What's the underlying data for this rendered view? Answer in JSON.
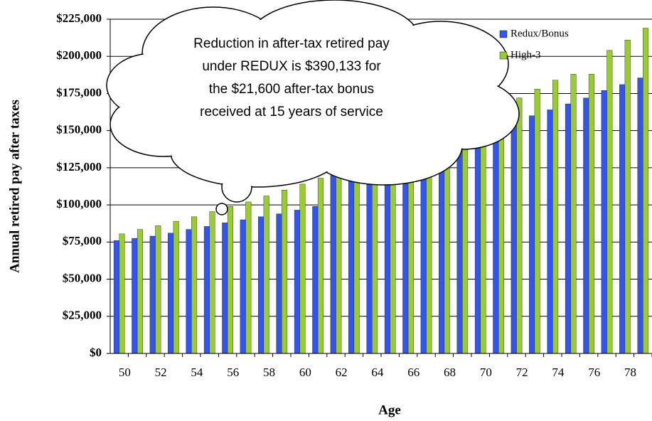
{
  "chart_data": {
    "type": "bar",
    "ylabel": "Annual  retired pay after taxes",
    "xlabel": "Age",
    "annotation": [
      "Reduction in after-tax retired pay",
      "under REDUX is $390,133 for",
      "the $21,600 after-tax bonus",
      "received at 15 years of service"
    ],
    "categories": [
      "50",
      null,
      "52",
      null,
      "54",
      null,
      "56",
      null,
      "58",
      null,
      "60",
      null,
      "62",
      null,
      "64",
      null,
      "66",
      null,
      "68",
      null,
      "70",
      null,
      "72",
      null,
      "74",
      null,
      "76",
      null,
      "78",
      null
    ],
    "series": [
      {
        "name": "Redux/Bonus",
        "color": "#3355ee",
        "values": [
          76000,
          77500,
          79000,
          81000,
          83500,
          85500,
          88000,
          90000,
          92000,
          94000,
          96500,
          99000,
          121000,
          124000,
          127000,
          129000,
          133000,
          137000,
          141000,
          145000,
          148000,
          152000,
          155000,
          160000,
          164000,
          168000,
          172000,
          177000,
          181000,
          185500
        ]
      },
      {
        "name": "High-3",
        "color": "#99cc33",
        "values": [
          80500,
          83500,
          86000,
          89000,
          92000,
          95500,
          99000,
          102000,
          106000,
          110000,
          114000,
          118000,
          122000,
          126000,
          130000,
          134000,
          138000,
          142000,
          150000,
          155000,
          160500,
          166000,
          172000,
          178000,
          184000,
          188000,
          188000,
          204000,
          211000,
          219000
        ]
      }
    ],
    "ylim": [
      0,
      225000
    ],
    "yticks": [
      {
        "value": 0,
        "label": "$0"
      },
      {
        "value": 25000,
        "label": "$25,000"
      },
      {
        "value": 50000,
        "label": "$50,000"
      },
      {
        "value": 75000,
        "label": "$75,000"
      },
      {
        "value": 100000,
        "label": "$100,000"
      },
      {
        "value": 125000,
        "label": "$125,000"
      },
      {
        "value": 150000,
        "label": "$150,000"
      },
      {
        "value": 175000,
        "label": "$175,000"
      },
      {
        "value": 200000,
        "label": "$200,000"
      },
      {
        "value": 225000,
        "label": "$225,000"
      }
    ],
    "grid": true,
    "legend": "top-right"
  }
}
